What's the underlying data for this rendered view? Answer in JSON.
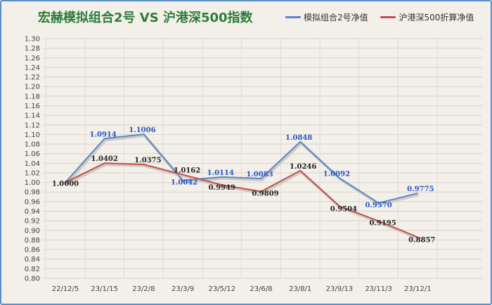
{
  "chart_data": {
    "type": "line",
    "title": "宏赫模拟组合2号 VS 沪港深500指数",
    "categories": [
      "22/12/5",
      "23/1/15",
      "23/2/8",
      "23/3/9",
      "23/5/12",
      "23/6/8",
      "23/8/1",
      "23/9/13",
      "23/11/3",
      "23/12/1"
    ],
    "ylim": [
      0.8,
      1.3
    ],
    "ytick_step": 0.02,
    "yticks": [
      "1.30",
      "1.28",
      "1.26",
      "1.24",
      "1.22",
      "1.20",
      "1.18",
      "1.16",
      "1.14",
      "1.12",
      "1.10",
      "1.08",
      "1.06",
      "1.04",
      "1.02",
      "1.00",
      "0.98",
      "0.96",
      "0.94",
      "0.92",
      "0.90",
      "0.88",
      "0.86",
      "0.84",
      "0.82",
      "0.80"
    ],
    "grid": true,
    "legend_position": "top-right",
    "series": [
      {
        "name": "模拟组合2号净值",
        "color": "#5b86c6",
        "label_color": "#2a56c6",
        "x": [
          "22/12/5",
          "23/1/15",
          "23/2/8",
          "23/3/9",
          "23/5/12",
          "23/6/8",
          "23/8/1",
          "23/9/13",
          "23/11/3",
          "23/12/1"
        ],
        "values": [
          1.0,
          1.0914,
          1.1006,
          1.0042,
          1.0114,
          1.0083,
          1.0848,
          1.0092,
          0.957,
          0.9775
        ],
        "labels": [
          "",
          "1.0914",
          "1.1006",
          "1.0042",
          "1.0114",
          "1.0083",
          "1.0848",
          "1.0092",
          "0.9570",
          "0.9775"
        ]
      },
      {
        "name": "沪港深500折算净值",
        "color": "#c0504d",
        "label_color": "#222222",
        "x": [
          "22/12/5",
          "23/1/15",
          "23/2/8",
          "23/3/9",
          "23/5/12",
          "23/6/8",
          "23/8/1",
          "23/9/13",
          "23/11/3",
          "23/12/1"
        ],
        "values": [
          1.0,
          1.0402,
          1.0375,
          1.0162,
          0.9949,
          0.9809,
          1.0246,
          0.9504,
          0.9195,
          0.8857
        ],
        "labels": [
          "1.0000",
          "1.0402",
          "1.0375",
          "1.0162",
          "0.9949",
          "0.9809",
          "1.0246",
          "0.9504",
          "0.9195",
          "0.8857"
        ]
      }
    ]
  }
}
